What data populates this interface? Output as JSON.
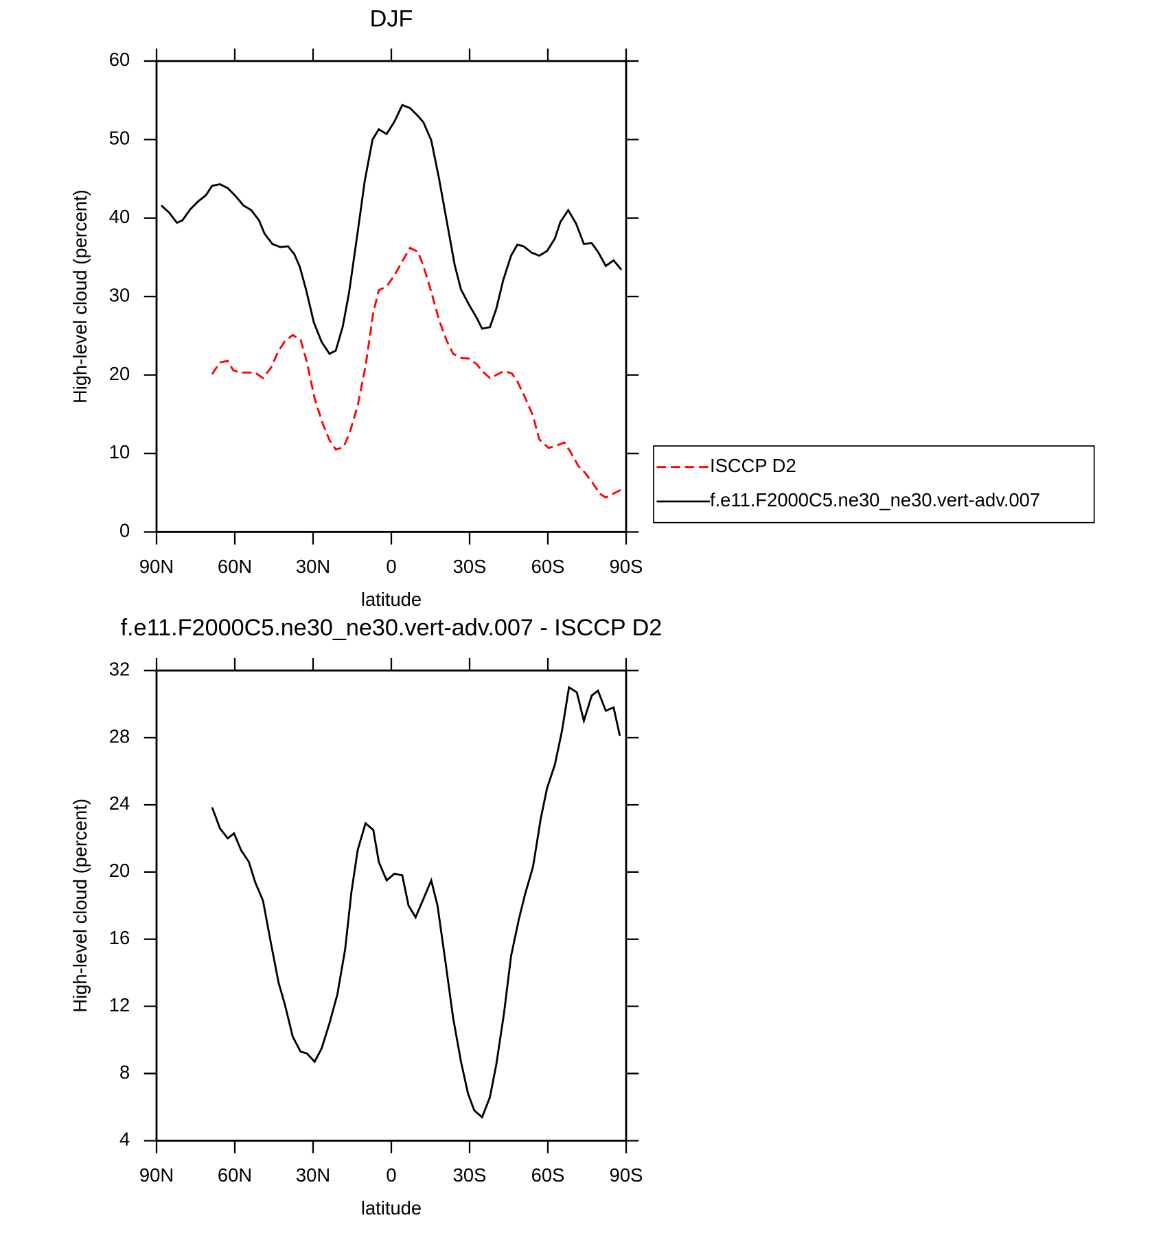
{
  "chart_data": [
    {
      "type": "line",
      "title": "DJF",
      "xlabel": "latitude",
      "ylabel": "High-level cloud (percent)",
      "xlim": [
        90,
        -90
      ],
      "xticks": [
        {
          "value": 90,
          "label": "90N"
        },
        {
          "value": 60,
          "label": "60N"
        },
        {
          "value": 30,
          "label": "30N"
        },
        0,
        {
          "value": -30,
          "label": "30S"
        },
        {
          "value": -60,
          "label": "60S"
        },
        {
          "value": -90,
          "label": "90S"
        }
      ],
      "ylim": [
        0,
        60
      ],
      "yticks": [
        0,
        10,
        20,
        30,
        40,
        50,
        60
      ],
      "legend": "right",
      "series": [
        {
          "name": "ISCCP D2",
          "color": "#ff0000",
          "style": "dashed",
          "x": [
            68.7,
            65.7,
            62.7,
            60.6,
            57.6,
            54.6,
            52.2,
            49.2,
            46.2,
            43.2,
            40.8,
            37.8,
            34.8,
            32.4,
            29.4,
            26.4,
            23.7,
            21.3,
            18.3,
            15.9,
            12.9,
            9.9,
            6.9,
            4.8,
            1.8,
            -1.2,
            -4.2,
            -7.2,
            -10.2,
            -12.3,
            -15.3,
            -18.3,
            -21.3,
            -23.7,
            -26.7,
            -29.7,
            -32.7,
            -34.8,
            -37.8,
            -40.2,
            -43.2,
            -46.2,
            -48.3,
            -51.3,
            -54.3,
            -56.7,
            -60.3,
            -63.3,
            -66.3,
            -68.7,
            -71.7,
            -74.1,
            -77.1,
            -79.8,
            -82.2,
            -85.2,
            -88.2
          ],
          "values": [
            20.1,
            21.6,
            21.8,
            20.6,
            20.3,
            20.3,
            20.3,
            19.6,
            20.9,
            23.1,
            24.3,
            25.1,
            24.5,
            21.7,
            17.0,
            13.9,
            11.7,
            10.5,
            10.8,
            12.7,
            16.1,
            21.1,
            28.0,
            30.8,
            31.3,
            32.7,
            34.5,
            36.2,
            35.7,
            33.9,
            30.6,
            27.0,
            24.3,
            22.7,
            22.2,
            22.1,
            21.4,
            20.5,
            19.6,
            20.0,
            20.5,
            20.2,
            19.2,
            17.1,
            14.8,
            11.8,
            10.7,
            11.0,
            11.4,
            10.2,
            8.4,
            7.6,
            6.3,
            4.9,
            4.4,
            4.9,
            5.4
          ]
        },
        {
          "name": "f.e11.F2000C5.ne30_ne30.vert-adv.007",
          "color": "#000000",
          "style": "solid",
          "x": [
            88.2,
            85.2,
            82.2,
            80.1,
            77.1,
            74.1,
            71.1,
            68.7,
            65.7,
            62.7,
            59.7,
            56.7,
            53.7,
            50.7,
            48.6,
            45.6,
            42.6,
            39.6,
            37.2,
            35.1,
            32.7,
            29.7,
            26.7,
            23.7,
            21.3,
            18.6,
            16.2,
            13.2,
            10.2,
            7.2,
            4.8,
            1.8,
            -1.2,
            -4.2,
            -7.2,
            -10.2,
            -12.3,
            -15.3,
            -18.3,
            -21.3,
            -24.3,
            -26.7,
            -29.7,
            -32.7,
            -34.8,
            -37.8,
            -40.2,
            -42.9,
            -45.9,
            -48.3,
            -50.7,
            -53.7,
            -56.7,
            -59.7,
            -62.7,
            -64.8,
            -67.8,
            -70.8,
            -73.8,
            -76.8,
            -79.2,
            -82.2,
            -85.2,
            -88.2
          ],
          "values": [
            41.6,
            40.7,
            39.4,
            39.7,
            41.1,
            42.1,
            42.9,
            44.1,
            44.3,
            43.8,
            42.8,
            41.6,
            41.0,
            39.7,
            38.0,
            36.7,
            36.3,
            36.4,
            35.4,
            33.8,
            30.9,
            26.7,
            24.2,
            22.7,
            23.1,
            26.2,
            30.5,
            37.5,
            44.7,
            50.0,
            51.3,
            50.7,
            52.3,
            54.4,
            54.0,
            53.0,
            52.2,
            49.9,
            45.0,
            39.5,
            34.0,
            30.9,
            29.0,
            27.3,
            25.9,
            26.1,
            28.4,
            32.1,
            35.2,
            36.6,
            36.4,
            35.6,
            35.2,
            35.8,
            37.4,
            39.5,
            41.0,
            39.3,
            36.7,
            36.8,
            35.7,
            33.9,
            34.6,
            33.4
          ]
        }
      ]
    },
    {
      "type": "line",
      "title": "f.e11.F2000C5.ne30_ne30.vert-adv.007 - ISCCP D2",
      "xlabel": "latitude",
      "ylabel": "High-level cloud (percent)",
      "xlim": [
        90,
        -90
      ],
      "xticks": [
        {
          "value": 90,
          "label": "90N"
        },
        {
          "value": 60,
          "label": "60N"
        },
        {
          "value": 30,
          "label": "30N"
        },
        0,
        {
          "value": -30,
          "label": "30S"
        },
        {
          "value": -60,
          "label": "60S"
        },
        {
          "value": -90,
          "label": "90S"
        }
      ],
      "ylim": [
        4,
        32
      ],
      "yticks": [
        4,
        8,
        12,
        16,
        20,
        24,
        28,
        32
      ],
      "series": [
        {
          "color": "#000000",
          "style": "solid",
          "x": [
            68.7,
            65.7,
            62.7,
            60.3,
            57.6,
            54.6,
            52.2,
            49.2,
            46.2,
            43.2,
            40.8,
            37.8,
            34.8,
            32.4,
            29.4,
            26.7,
            23.7,
            20.7,
            17.7,
            15.3,
            12.9,
            9.9,
            6.9,
            4.8,
            1.8,
            -1.2,
            -4.2,
            -6.6,
            -9.3,
            -12.3,
            -15.3,
            -17.7,
            -20.7,
            -23.7,
            -26.7,
            -29.4,
            -31.8,
            -34.8,
            -37.8,
            -40.2,
            -43.2,
            -45.9,
            -48.9,
            -51.3,
            -54.3,
            -57.3,
            -59.7,
            -62.7,
            -65.4,
            -68.1,
            -71.1,
            -73.8,
            -76.8,
            -79.2,
            -82.2,
            -85.2,
            -87.6
          ],
          "values": [
            23.85,
            22.6,
            22.0,
            22.3,
            21.3,
            20.6,
            19.4,
            18.3,
            15.8,
            13.4,
            12.1,
            10.2,
            9.3,
            9.2,
            8.7,
            9.5,
            11.0,
            12.7,
            15.4,
            18.8,
            21.3,
            22.9,
            22.5,
            20.6,
            19.5,
            19.9,
            19.8,
            18.0,
            17.3,
            18.4,
            19.5,
            18.0,
            14.7,
            11.3,
            8.7,
            6.8,
            5.8,
            5.4,
            6.6,
            8.5,
            11.6,
            15.0,
            17.2,
            18.7,
            20.3,
            23.2,
            25.0,
            26.4,
            28.4,
            31.0,
            30.7,
            29.0,
            30.5,
            30.8,
            29.6,
            29.8,
            28.1
          ]
        }
      ]
    }
  ]
}
